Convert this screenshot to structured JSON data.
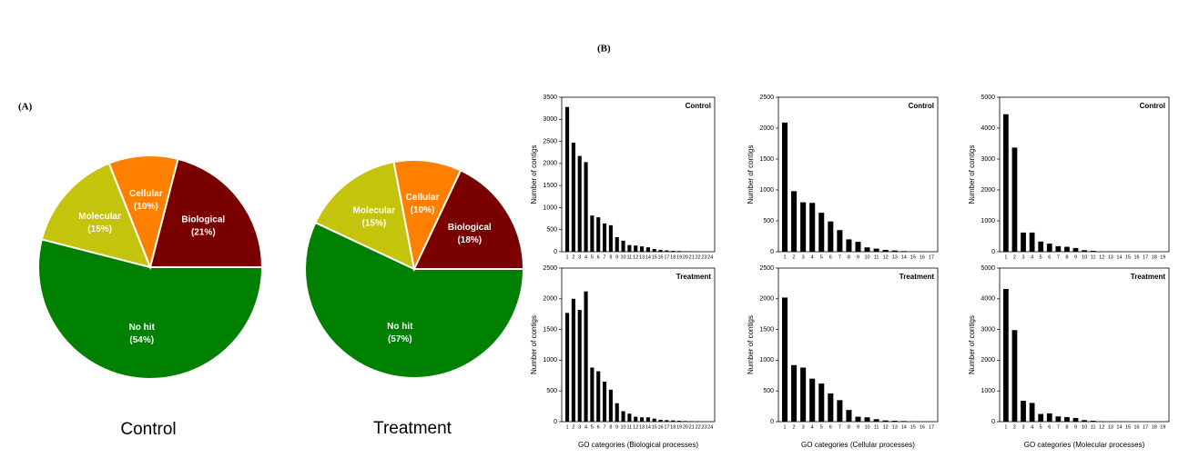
{
  "panels": {
    "a": "(A)",
    "b": "(B)"
  },
  "chart_data": [
    {
      "type": "pie",
      "title": "Control",
      "categories": [
        "No hit",
        "Molecular",
        "Cellular",
        "Biological"
      ],
      "values": [
        54,
        15,
        10,
        21
      ],
      "value_labels": [
        "(54%)",
        "(15%)",
        "(10%)",
        "(21%)"
      ],
      "colors": [
        "#008000",
        "#c4c40c",
        "#ff8000",
        "#7a0000"
      ]
    },
    {
      "type": "pie",
      "title": "Treatment",
      "categories": [
        "No hit",
        "Molecular",
        "Cellular",
        "Biological"
      ],
      "values": [
        57,
        15,
        10,
        18
      ],
      "value_labels": [
        "(57%)",
        "(15%)",
        "(10%)",
        "(18%)"
      ],
      "colors": [
        "#008000",
        "#c4c40c",
        "#ff8000",
        "#7a0000"
      ]
    },
    {
      "type": "bar",
      "title": "Control",
      "y_label": "Number of contigs",
      "color": "#000000",
      "categories": [
        1,
        2,
        3,
        4,
        5,
        6,
        7,
        8,
        9,
        10,
        11,
        12,
        13,
        14,
        15,
        16,
        17,
        18,
        19,
        20,
        21,
        22,
        23,
        24
      ],
      "values": [
        3280,
        2470,
        2170,
        2030,
        820,
        780,
        640,
        600,
        330,
        250,
        150,
        140,
        120,
        100,
        60,
        40,
        30,
        20,
        15,
        10,
        8,
        5,
        3,
        2
      ],
      "ylim": [
        0,
        3500
      ],
      "yticks": [
        0,
        500,
        1000,
        1500,
        2000,
        2500,
        3000,
        3500
      ]
    },
    {
      "type": "bar",
      "title": "Treatment",
      "y_label": "Number of contigs",
      "x_label": "GO categories (Biological processes)",
      "color": "#000000",
      "categories": [
        1,
        2,
        3,
        4,
        5,
        6,
        7,
        8,
        9,
        10,
        11,
        12,
        13,
        14,
        15,
        16,
        17,
        18,
        19,
        20,
        21,
        22,
        23,
        24
      ],
      "values": [
        1770,
        2000,
        1820,
        2120,
        880,
        820,
        650,
        520,
        300,
        170,
        130,
        80,
        70,
        70,
        50,
        30,
        25,
        20,
        15,
        10,
        8,
        5,
        3,
        2
      ],
      "ylim": [
        0,
        2500
      ],
      "yticks": [
        0,
        500,
        1000,
        1500,
        2000,
        2500
      ]
    },
    {
      "type": "bar",
      "title": "Control",
      "y_label": "Number of contigs",
      "color": "#000000",
      "categories": [
        1,
        2,
        3,
        4,
        5,
        6,
        7,
        8,
        9,
        10,
        11,
        12,
        13,
        14,
        15,
        16,
        17
      ],
      "values": [
        2090,
        980,
        800,
        790,
        630,
        490,
        350,
        200,
        160,
        70,
        50,
        30,
        20,
        10,
        5,
        3,
        2
      ],
      "ylim": [
        0,
        2500
      ],
      "yticks": [
        0,
        500,
        1000,
        1500,
        2000,
        2500
      ]
    },
    {
      "type": "bar",
      "title": "Treatment",
      "y_label": "Number of contigs",
      "x_label": "GO categories (Cellular processes)",
      "color": "#000000",
      "categories": [
        1,
        2,
        3,
        4,
        5,
        6,
        7,
        8,
        9,
        10,
        11,
        12,
        13,
        14,
        15,
        16,
        17
      ],
      "values": [
        2020,
        920,
        880,
        700,
        620,
        460,
        350,
        190,
        80,
        70,
        40,
        20,
        15,
        10,
        5,
        3,
        2
      ],
      "ylim": [
        0,
        2500
      ],
      "yticks": [
        0,
        500,
        1000,
        1500,
        2000,
        2500
      ]
    },
    {
      "type": "bar",
      "title": "Control",
      "y_label": "Number of contigs",
      "color": "#000000",
      "categories": [
        1,
        2,
        3,
        4,
        5,
        6,
        7,
        8,
        9,
        10,
        11,
        12,
        13,
        14,
        15,
        16,
        17,
        18,
        19
      ],
      "values": [
        4450,
        3370,
        620,
        620,
        330,
        260,
        180,
        160,
        120,
        50,
        30,
        10,
        8,
        5,
        4,
        3,
        2,
        2,
        1
      ],
      "ylim": [
        0,
        5000
      ],
      "yticks": [
        0,
        1000,
        2000,
        3000,
        4000,
        5000
      ]
    },
    {
      "type": "bar",
      "title": "Treatment",
      "y_label": "Number of contigs",
      "x_label": "GO categories (Molecular processes)",
      "color": "#000000",
      "categories": [
        1,
        2,
        3,
        4,
        5,
        6,
        7,
        8,
        9,
        10,
        11,
        12,
        13,
        14,
        15,
        16,
        17,
        18,
        19
      ],
      "values": [
        4320,
        2980,
        680,
        610,
        250,
        270,
        170,
        150,
        120,
        50,
        30,
        10,
        8,
        5,
        4,
        3,
        2,
        2,
        1
      ],
      "ylim": [
        0,
        5000
      ],
      "yticks": [
        0,
        1000,
        2000,
        3000,
        4000,
        5000
      ]
    }
  ]
}
